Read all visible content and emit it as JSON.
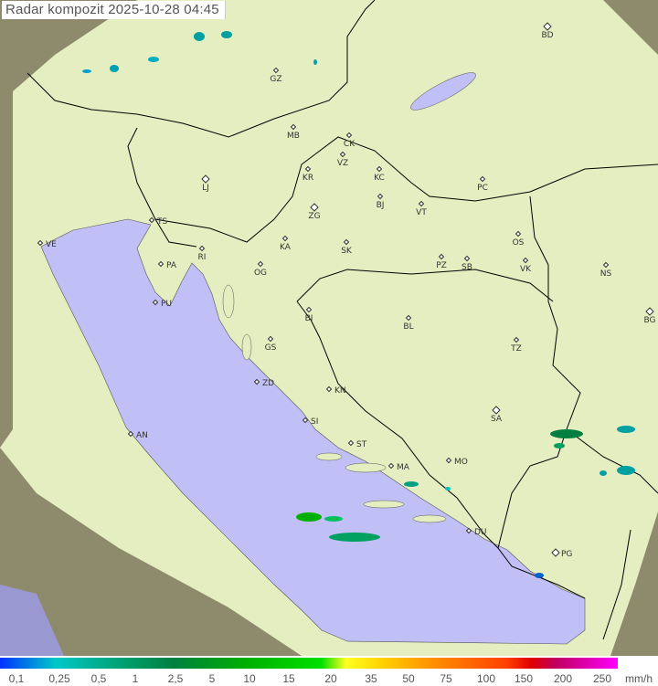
{
  "title": "Radar kompozit  2025-10-28   04:45",
  "colors": {
    "sea": "#c0c0f6",
    "land_in_range": "#e4eec0",
    "out_of_range": "#8e8a6c",
    "border": "#000000"
  },
  "cities": [
    "BD",
    "GZ",
    "MB",
    "CK",
    "VZ",
    "KR",
    "KC",
    "PC",
    "LJ",
    "ZG",
    "BJ",
    "VT",
    "TS",
    "VE",
    "KA",
    "SK",
    "OS",
    "RI",
    "PA",
    "OG",
    "PZ",
    "SB",
    "VK",
    "NS",
    "PU",
    "BG",
    "BI",
    "BL",
    "GS",
    "TZ",
    "ZD",
    "KN",
    "SA",
    "AN",
    "SI",
    "ST",
    "MO",
    "MA",
    "DU",
    "PG"
  ],
  "legend": {
    "ticks": [
      "0,1",
      "0,25",
      "0,5",
      "1",
      "2,5",
      "5",
      "10",
      "15",
      "20",
      "35",
      "50",
      "75",
      "100",
      "150",
      "200",
      "250"
    ],
    "unit": "mm/h"
  }
}
